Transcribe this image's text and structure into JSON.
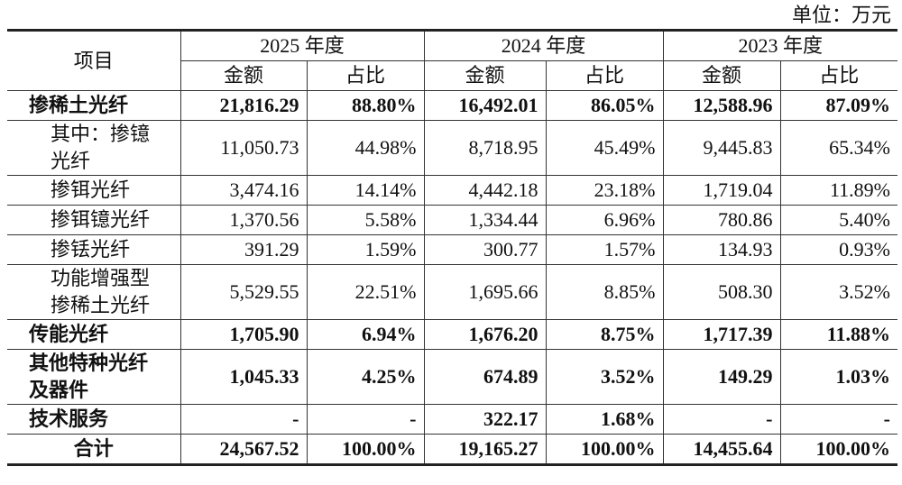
{
  "unit": "单位：万元",
  "table": {
    "header": {
      "item": "项目",
      "years": [
        "2025 年度",
        "2024 年度",
        "2023 年度"
      ],
      "sub": [
        "金额",
        "占比"
      ]
    },
    "rows": [
      [
        "掺稀土光纤",
        "21,816.29",
        "88.80%",
        "16,492.01",
        "86.05%",
        "12,588.96",
        "87.09%"
      ],
      [
        "其中：掺镱光纤",
        "11,050.73",
        "44.98%",
        "8,718.95",
        "45.49%",
        "9,445.83",
        "65.34%"
      ],
      [
        "掺铒光纤",
        "3,474.16",
        "14.14%",
        "4,442.18",
        "23.18%",
        "1,719.04",
        "11.89%"
      ],
      [
        "掺铒镱光纤",
        "1,370.56",
        "5.58%",
        "1,334.44",
        "6.96%",
        "780.86",
        "5.40%"
      ],
      [
        "掺铥光纤",
        "391.29",
        "1.59%",
        "300.77",
        "1.57%",
        "134.93",
        "0.93%"
      ],
      [
        "功能增强型掺稀土光纤",
        "5,529.55",
        "22.51%",
        "1,695.66",
        "8.85%",
        "508.30",
        "3.52%"
      ],
      [
        "传能光纤",
        "1,705.90",
        "6.94%",
        "1,676.20",
        "8.75%",
        "1,717.39",
        "11.88%"
      ],
      [
        "其他特种光纤及器件",
        "1,045.33",
        "4.25%",
        "674.89",
        "3.52%",
        "149.29",
        "1.03%"
      ],
      [
        "技术服务",
        "-",
        "-",
        "322.17",
        "1.68%",
        "-",
        "-"
      ],
      [
        "合计",
        "24,567.52",
        "100.00%",
        "19,165.27",
        "100.00%",
        "14,455.64",
        "100.00%"
      ]
    ]
  }
}
